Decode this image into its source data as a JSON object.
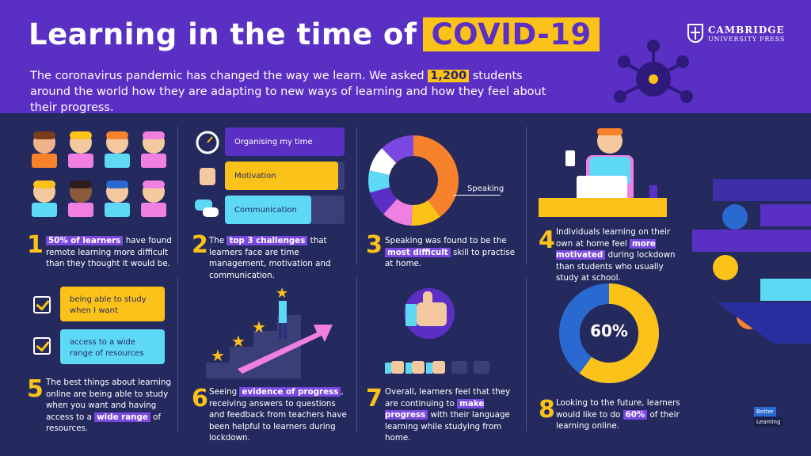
{
  "header": {
    "title": "Learning in the time of",
    "title_highlight": "COVID-19",
    "subtitle_before": "The coronavirus pandemic has changed the way we learn. We asked ",
    "subtitle_highlight": "1,200",
    "subtitle_after": " students around the world how they are adapting to new ways of learning and how they feel about their progress.",
    "logo_line1": "CAMBRIDGE",
    "logo_line2": "UNIVERSITY PRESS"
  },
  "panels": [
    {
      "num": "1",
      "hl": "50% of learners",
      "after": " have found remote learning more difficult than they thought it would be."
    },
    {
      "num": "2",
      "before": "The ",
      "hl": "top 3 challenges",
      "after": " that learners face are time management, motivation and communication."
    },
    {
      "num": "3",
      "before": "Speaking was found to be the ",
      "hl": "most difficult",
      "after": " skill to practise at home."
    },
    {
      "num": "4",
      "before": "Individuals learning on their own at home feel ",
      "hl": "more motivated",
      "after": " during lockdown than students who usually study at school."
    },
    {
      "num": "5",
      "before": "The best things about learning online are being able to study when you want and having access to a ",
      "hl": "wide range",
      "after": " of resources."
    },
    {
      "num": "6",
      "before": "Seeing ",
      "hl": "evidence of progress",
      "after": ", receiving answers to questions and feedback from teachers have been helpful to learners during lockdown."
    },
    {
      "num": "7",
      "before": "Overall, learners feel that they are continuing to ",
      "hl": "make progress",
      "after": " with their language learning while studying from home."
    },
    {
      "num": "8",
      "before": "Looking to the future, learners would like to do ",
      "hl": "60%",
      "after": " of their learning online."
    }
  ],
  "challenges": [
    {
      "label": "Organising my time",
      "fill": 1.0
    },
    {
      "label": "Motivation",
      "fill": 0.95
    },
    {
      "label": "Communication",
      "fill": 0.72
    }
  ],
  "speaking_label": "Speaking",
  "best_things": [
    "being able to study when I want",
    "access to a wide range of resources"
  ],
  "donut_percent": "60%",
  "donut_value": 60,
  "brand": {
    "line1": "Better",
    "line2": "Learning"
  },
  "colors": {
    "purple": "#5a2fc4",
    "yellow": "#fbc21a",
    "navy": "#252a5e",
    "cyan": "#5dd8f5",
    "pink": "#ef7fe0",
    "orange": "#f7822b"
  }
}
